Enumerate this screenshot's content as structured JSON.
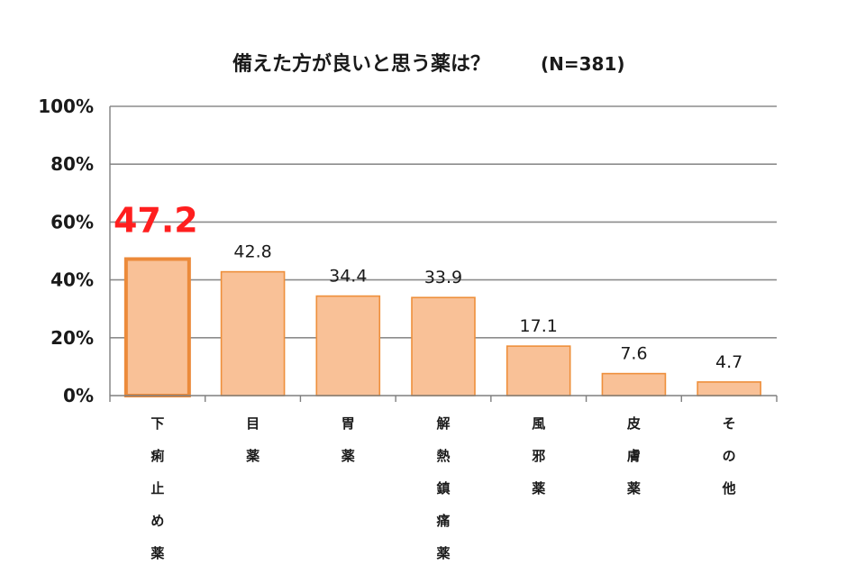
{
  "chart_data": {
    "type": "bar",
    "title": "備えた方が良いと思う薬は？",
    "subtitle": "(N=381)",
    "categories": [
      "下痢止め薬",
      "目薬",
      "胃薬",
      "解熱鎮痛薬",
      "風邪薬",
      "皮膚薬",
      "その他"
    ],
    "values": [
      47.2,
      42.8,
      34.4,
      33.9,
      17.1,
      7.6,
      4.7
    ],
    "value_labels": [
      "47.2",
      "42.8",
      "34.4",
      "33.9",
      "17.1",
      "7.6",
      "4.7"
    ],
    "y_ticks": [
      0,
      20,
      40,
      60,
      80,
      100
    ],
    "y_tick_labels": [
      "0%",
      "20%",
      "40%",
      "60%",
      "80%",
      "100%"
    ],
    "ylim": [
      0,
      100
    ],
    "grid": true,
    "highlight_index": 0,
    "colors": {
      "bar_fill": "#f9c197",
      "bar_stroke": "#ee8f3b",
      "highlight_stroke": "#ec8a3a",
      "highlight_label": "#ff1f1f",
      "grid": "#8c8c8c",
      "axis": "#7f7f7f"
    }
  }
}
